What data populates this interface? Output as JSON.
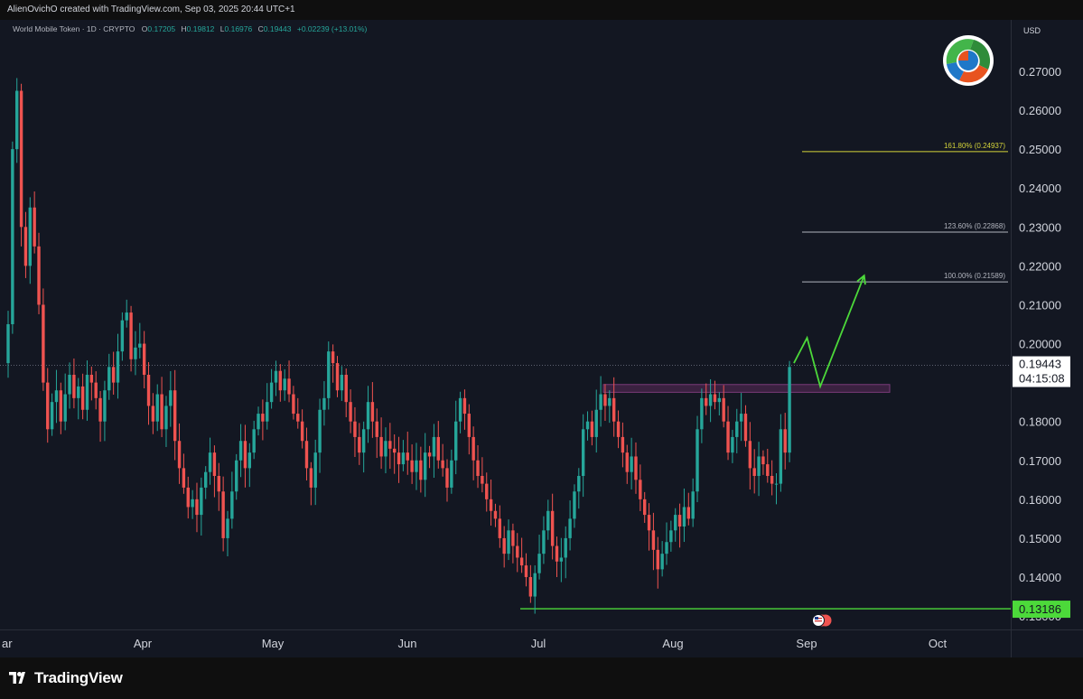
{
  "header": {
    "credit": "AlienOvichO created with TradingView.com, Sep 03, 2025 20:44 UTC+1"
  },
  "legend": {
    "symbol": "World Mobile Token · 1D · CRYPTO",
    "o_label": "O",
    "o_value": "0.17205",
    "h_label": "H",
    "h_value": "0.19812",
    "l_label": "L",
    "l_value": "0.16976",
    "c_label": "C",
    "c_value": "0.19443",
    "change": "+0.02239 (+13.01%)"
  },
  "price_axis": {
    "currency": "USD",
    "ticks": [
      "0.27000",
      "0.26000",
      "0.25000",
      "0.24000",
      "0.23000",
      "0.22000",
      "0.21000",
      "0.20000",
      "0.18000",
      "0.17000",
      "0.16000",
      "0.15000",
      "0.14000",
      "0.13000"
    ],
    "last_price": "0.19443",
    "countdown": "04:15:08",
    "support_label": "0.13186"
  },
  "fib_levels": [
    {
      "label": "161.80% (0.24937)",
      "price": 0.24937,
      "color": "#d4d43a"
    },
    {
      "label": "123.60% (0.22868)",
      "price": 0.22868,
      "color": "#b2b5be"
    },
    {
      "label": "100.00% (0.21589)",
      "price": 0.21589,
      "color": "#b2b5be"
    }
  ],
  "time_axis": {
    "labels": [
      "ar",
      "Apr",
      "May",
      "Jun",
      "Jul",
      "Aug",
      "Sep",
      "Oct"
    ]
  },
  "colors": {
    "up": "#26a69a",
    "down": "#ef5350",
    "projection": "#4cd93a",
    "support": "#4cd93a",
    "zone": "#5b2a5a",
    "background": "#131722"
  },
  "footer": {
    "brand": "TradingView"
  },
  "chart_data": {
    "type": "candlestick",
    "title": "World Mobile Token · 1D · CRYPTO",
    "ylabel": "USD",
    "ylim": [
      0.1283,
      0.2786
    ],
    "grid": false,
    "xlabels": [
      "ar",
      "Apr",
      "May",
      "Jun",
      "Jul",
      "Aug",
      "Sep",
      "Oct"
    ],
    "last_close": 0.19443,
    "support": 0.13186,
    "resistance_zone": [
      0.1875,
      0.1895
    ],
    "fib_extensions": [
      {
        "ratio": "100.00%",
        "price": 0.21589
      },
      {
        "ratio": "123.60%",
        "price": 0.22868
      },
      {
        "ratio": "161.80%",
        "price": 0.24937
      }
    ],
    "projected_path": [
      {
        "date": "2025-09-04",
        "price": 0.195
      },
      {
        "date": "2025-09-07",
        "price": 0.2015
      },
      {
        "date": "2025-09-10",
        "price": 0.189
      },
      {
        "date": "2025-09-20",
        "price": 0.2175
      }
    ],
    "closes": [
      0.205,
      0.25,
      0.265,
      0.23,
      0.22,
      0.235,
      0.225,
      0.21,
      0.19,
      0.178,
      0.185,
      0.188,
      0.18,
      0.187,
      0.192,
      0.186,
      0.189,
      0.183,
      0.192,
      0.19,
      0.186,
      0.18,
      0.188,
      0.194,
      0.19,
      0.198,
      0.206,
      0.208,
      0.196,
      0.199,
      0.2,
      0.192,
      0.184,
      0.18,
      0.187,
      0.178,
      0.184,
      0.188,
      0.175,
      0.168,
      0.163,
      0.158,
      0.16,
      0.156,
      0.163,
      0.167,
      0.172,
      0.166,
      0.162,
      0.15,
      0.155,
      0.162,
      0.17,
      0.175,
      0.168,
      0.172,
      0.178,
      0.182,
      0.18,
      0.185,
      0.19,
      0.193,
      0.188,
      0.191,
      0.187,
      0.182,
      0.18,
      0.175,
      0.168,
      0.163,
      0.172,
      0.183,
      0.186,
      0.198,
      0.195,
      0.188,
      0.192,
      0.185,
      0.18,
      0.176,
      0.172,
      0.178,
      0.185,
      0.18,
      0.176,
      0.171,
      0.175,
      0.173,
      0.172,
      0.169,
      0.172,
      0.17,
      0.167,
      0.17,
      0.165,
      0.172,
      0.171,
      0.176,
      0.17,
      0.168,
      0.163,
      0.17,
      0.18,
      0.186,
      0.182,
      0.176,
      0.17,
      0.166,
      0.164,
      0.16,
      0.157,
      0.155,
      0.15,
      0.146,
      0.152,
      0.148,
      0.145,
      0.143,
      0.14,
      0.135,
      0.141,
      0.146,
      0.152,
      0.157,
      0.148,
      0.144,
      0.145,
      0.15,
      0.155,
      0.162,
      0.166,
      0.178,
      0.18,
      0.176,
      0.183,
      0.187,
      0.184,
      0.186,
      0.18,
      0.176,
      0.172,
      0.167,
      0.171,
      0.165,
      0.16,
      0.156,
      0.152,
      0.147,
      0.142,
      0.146,
      0.149,
      0.152,
      0.156,
      0.153,
      0.158,
      0.155,
      0.162,
      0.178,
      0.186,
      0.184,
      0.187,
      0.185,
      0.186,
      0.18,
      0.172,
      0.176,
      0.18,
      0.182,
      0.175,
      0.168,
      0.166,
      0.171,
      0.169,
      0.166,
      0.164,
      0.164,
      0.178,
      0.172,
      0.194
    ]
  }
}
